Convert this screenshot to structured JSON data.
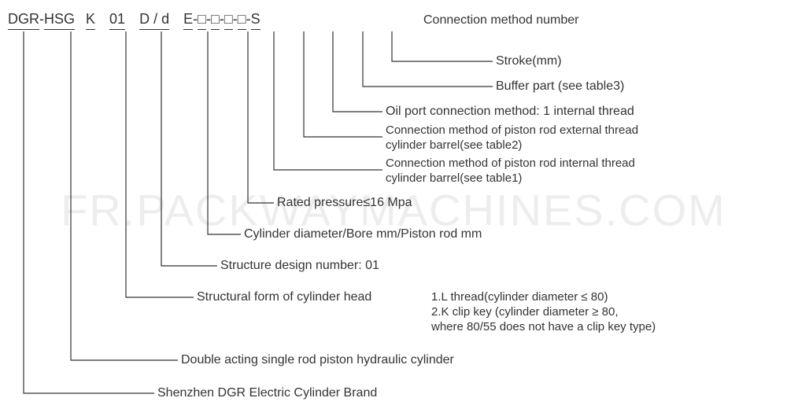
{
  "code": {
    "segments": [
      {
        "text": "DGR",
        "ul": true
      },
      {
        "text": "-",
        "ul": false
      },
      {
        "text": "HSG",
        "ul": true
      },
      {
        "text": "",
        "ul": false,
        "w": 14
      },
      {
        "text": "K",
        "ul": true
      },
      {
        "text": "",
        "ul": false,
        "w": 18
      },
      {
        "text": "01",
        "ul": true
      },
      {
        "text": "",
        "ul": false,
        "w": 18
      },
      {
        "text": "D / d",
        "ul": true
      },
      {
        "text": "",
        "ul": false,
        "w": 18
      },
      {
        "text": "E",
        "ul": true
      },
      {
        "text": "-",
        "ul": false
      },
      {
        "text": "□",
        "ul": true
      },
      {
        "text": "-",
        "ul": false
      },
      {
        "text": "□",
        "ul": true
      },
      {
        "text": "-",
        "ul": false
      },
      {
        "text": "□",
        "ul": true
      },
      {
        "text": "-",
        "ul": false
      },
      {
        "text": "□",
        "ul": true
      },
      {
        "text": "-",
        "ul": false
      },
      {
        "text": "S",
        "ul": true
      }
    ]
  },
  "labels": {
    "top": "Connection method number",
    "stroke": "Stroke(mm)",
    "buffer": "Buffer part (see table3)",
    "oilport": "Oil port connection method: 1 internal thread",
    "ext": "Connection method of piston rod external thread\ncylinder barrel(see table2)",
    "int": "Connection method of piston rod internal thread\ncylinder barrel(see table1)",
    "rated": "Rated pressure≤16 Mpa",
    "bore": "Cylinder diameter/Bore mm/Piston rod mm",
    "struct_no": "Structure design number: 01",
    "struct_form": "Structural form of cylinder head",
    "struct_form_extra": "1.L thread(cylinder diameter ≤ 80)\n2.K clip key (cylinder diameter ≥ 80,\nwhere 80/55 does not have a clip key type)",
    "double": "Double acting single rod piston hydraulic cylinder",
    "brand": "Shenzhen DGR Electric Cylinder Brand"
  },
  "watermark": "FR.PACKWAYMACHINES.COM",
  "colors": {
    "line": "#333333",
    "text": "#333333",
    "bg": "#ffffff"
  }
}
